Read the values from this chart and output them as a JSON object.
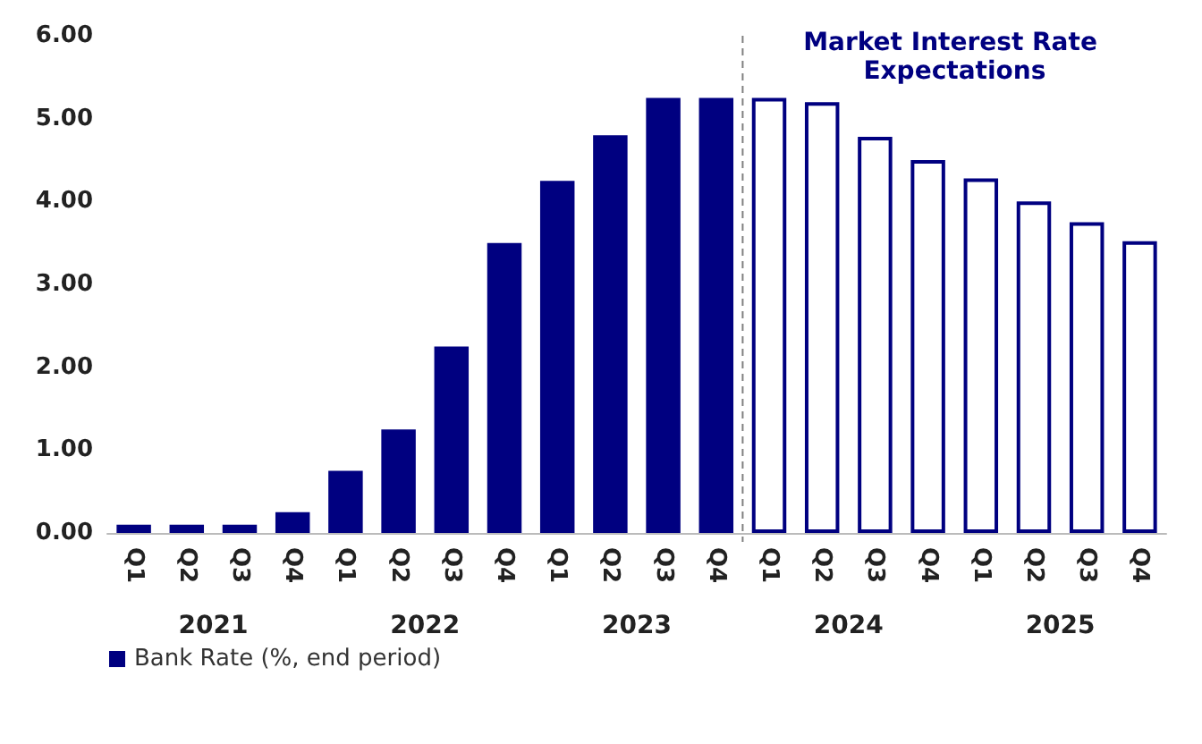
{
  "chart_data": {
    "type": "bar",
    "categories": [
      "Q1",
      "Q2",
      "Q3",
      "Q4",
      "Q1",
      "Q2",
      "Q3",
      "Q4",
      "Q1",
      "Q2",
      "Q3",
      "Q4",
      "Q1",
      "Q2",
      "Q3",
      "Q4",
      "Q1",
      "Q2",
      "Q3",
      "Q4"
    ],
    "series": [
      {
        "name": "Bank Rate (%, end period)",
        "color": "#000080",
        "values": [
          0.1,
          0.1,
          0.1,
          0.25,
          0.75,
          1.25,
          2.25,
          3.5,
          4.25,
          4.8,
          5.25,
          5.25,
          null,
          null,
          null,
          null,
          null,
          null,
          null,
          null
        ]
      },
      {
        "color": "#ffffff",
        "values": [
          null,
          null,
          null,
          null,
          null,
          null,
          null,
          null,
          null,
          null,
          null,
          null,
          5.25,
          5.2,
          4.78,
          4.5,
          4.28,
          4.0,
          3.75,
          3.52
        ]
      }
    ],
    "ylim": [
      0,
      6
    ],
    "yticks": [
      {
        "value": 0,
        "label": "0.00"
      },
      {
        "value": 1,
        "label": "1.00"
      },
      {
        "value": 2,
        "label": "2.00"
      },
      {
        "value": 3,
        "label": "3.00"
      },
      {
        "value": 4,
        "label": "4.00"
      },
      {
        "value": 5,
        "label": "5.00"
      },
      {
        "value": 6,
        "label": "6.00"
      }
    ],
    "annotations": [
      "2021",
      "2022",
      "2023",
      "2024",
      "2025",
      "Market Interest Rate Expectations"
    ],
    "grid": false,
    "legend": "bottom left"
  }
}
